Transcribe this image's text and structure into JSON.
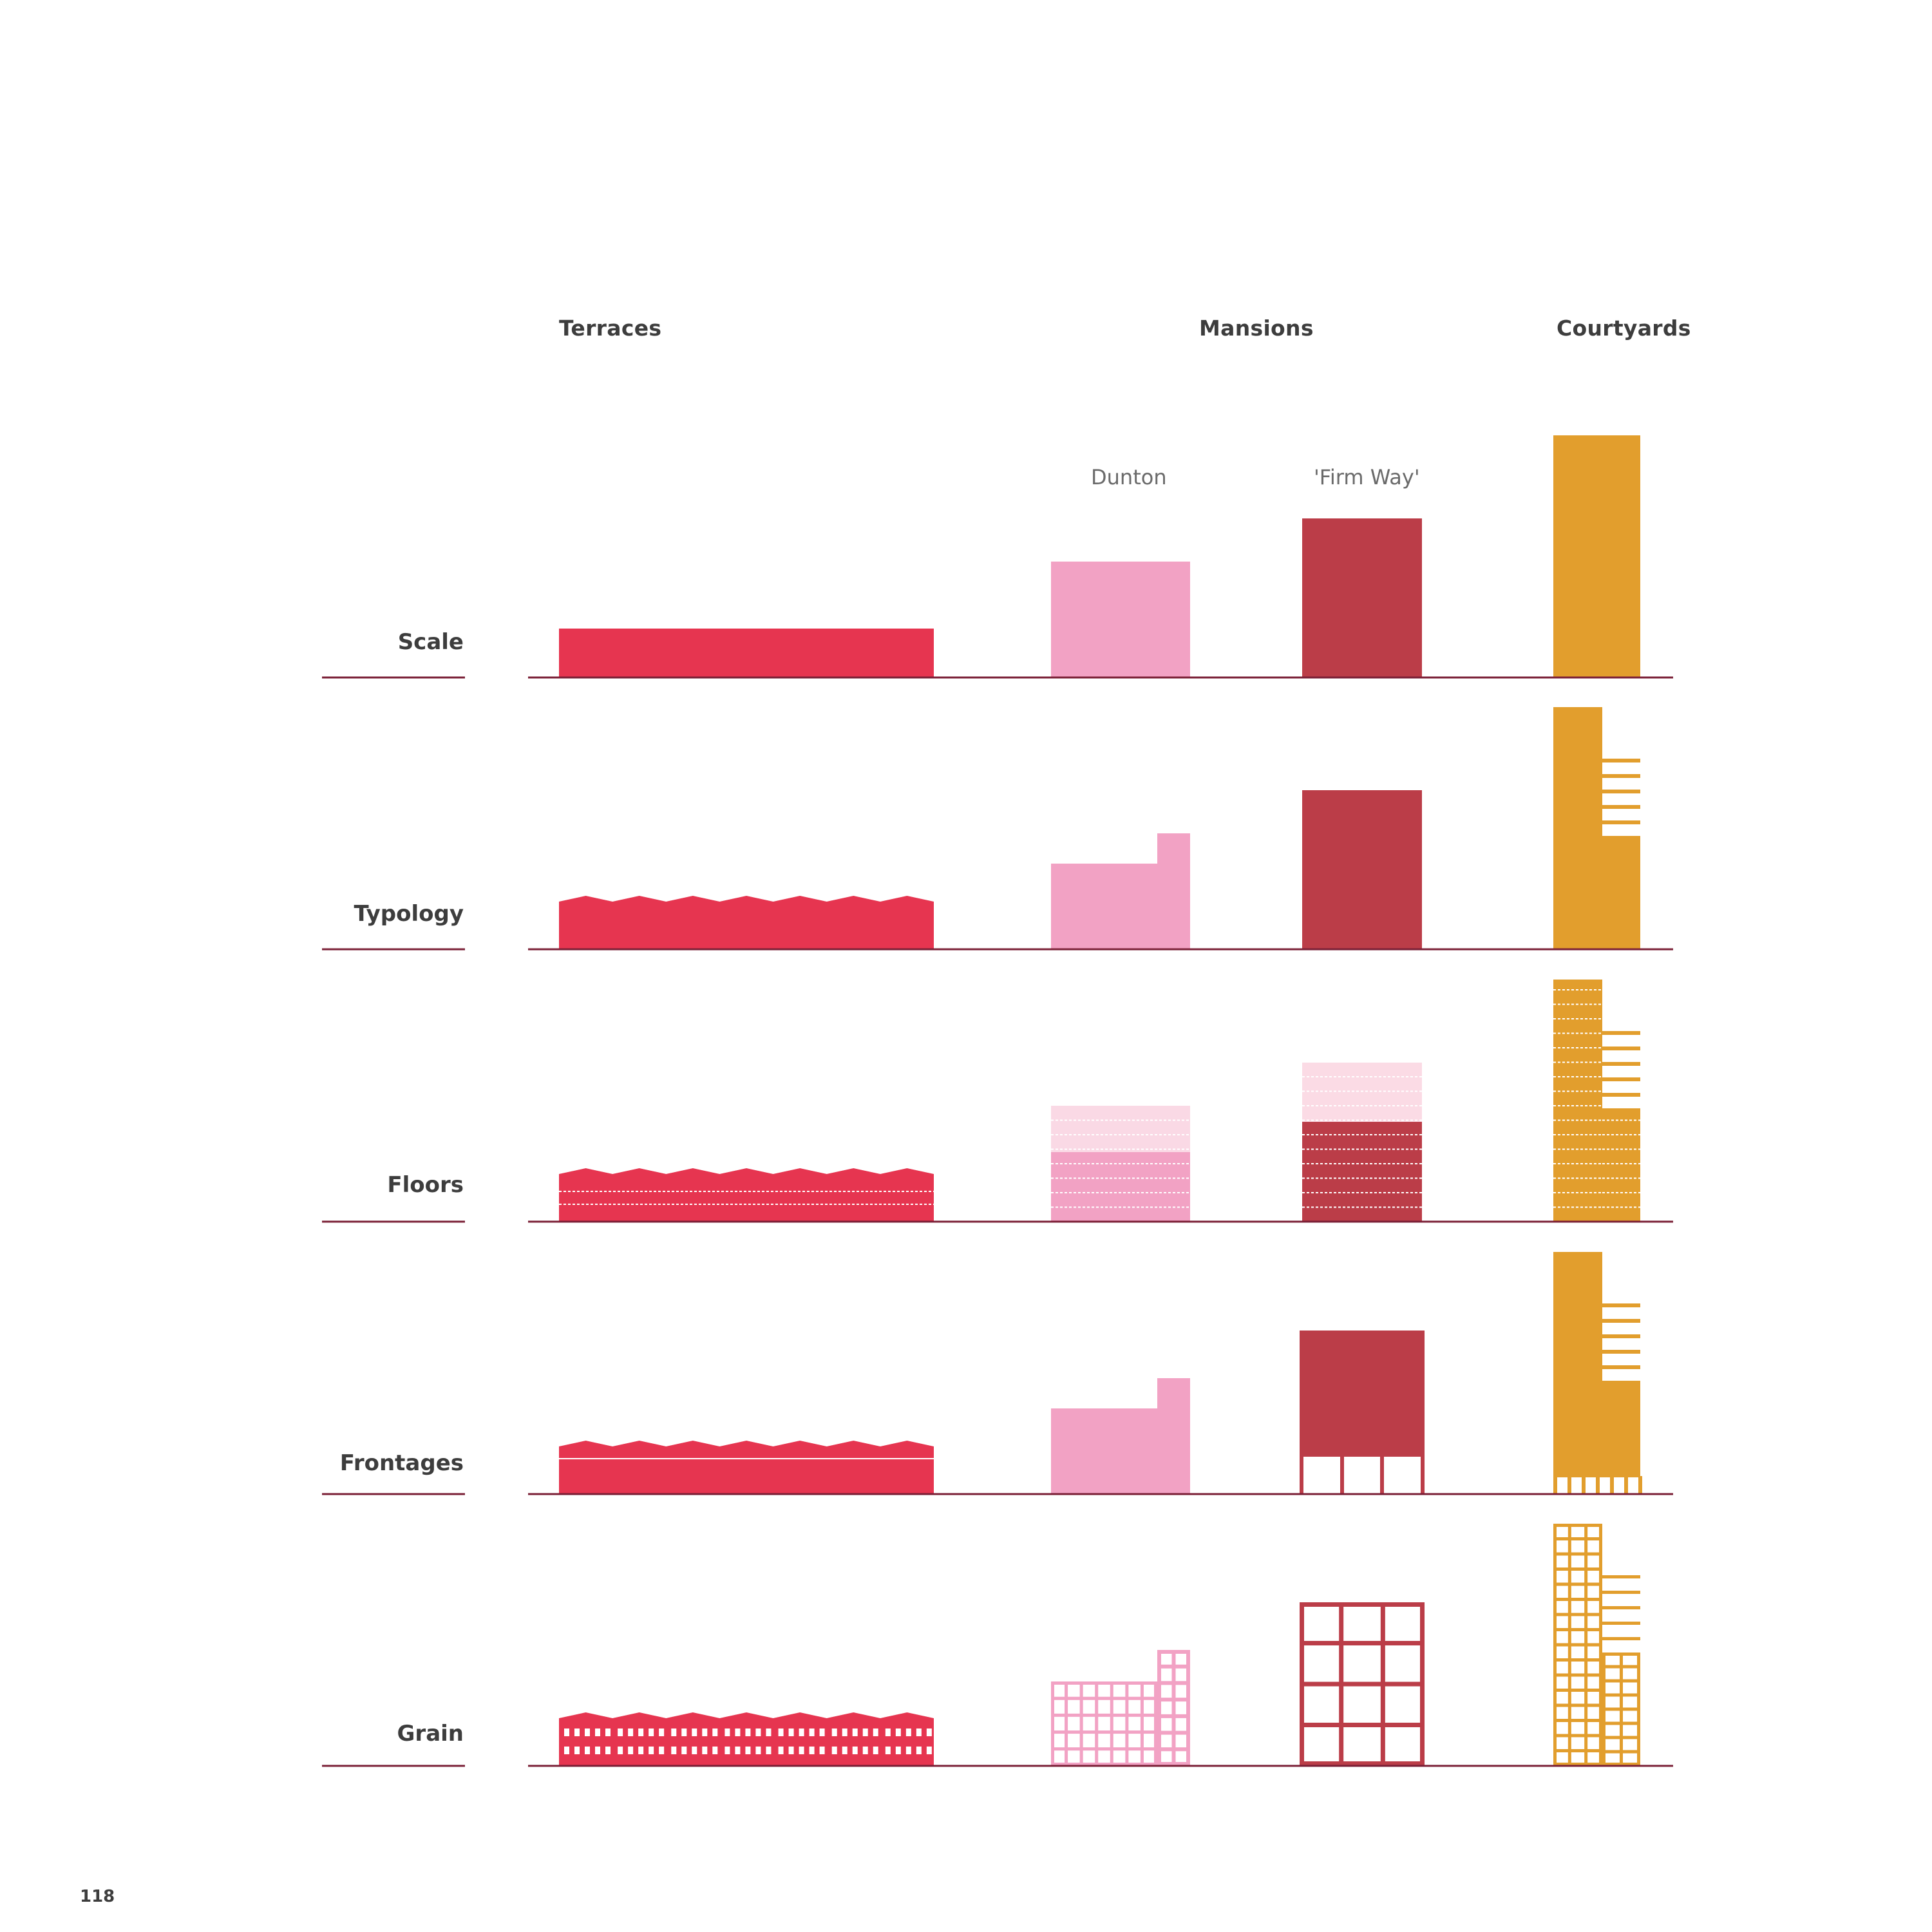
{
  "columns": {
    "terraces": "Terraces",
    "mansions": "Mansions",
    "courtyards": "Courtyards"
  },
  "subcolumns": {
    "dunton": "Dunton",
    "firm_way": "'Firm Way'"
  },
  "rows": {
    "scale": "Scale",
    "typology": "Typology",
    "floors": "Floors",
    "frontages": "Frontages",
    "grain": "Grain"
  },
  "page_number": "118",
  "colors": {
    "terraces": "#e63550",
    "dunton": "#f2a2c4",
    "dunton_light": "#fad9e5",
    "firm_way": "#bb3d48",
    "firm_way_light": "#fbdbe5",
    "courtyards": "#e29e2d",
    "baseline": "#7a1f36"
  }
}
